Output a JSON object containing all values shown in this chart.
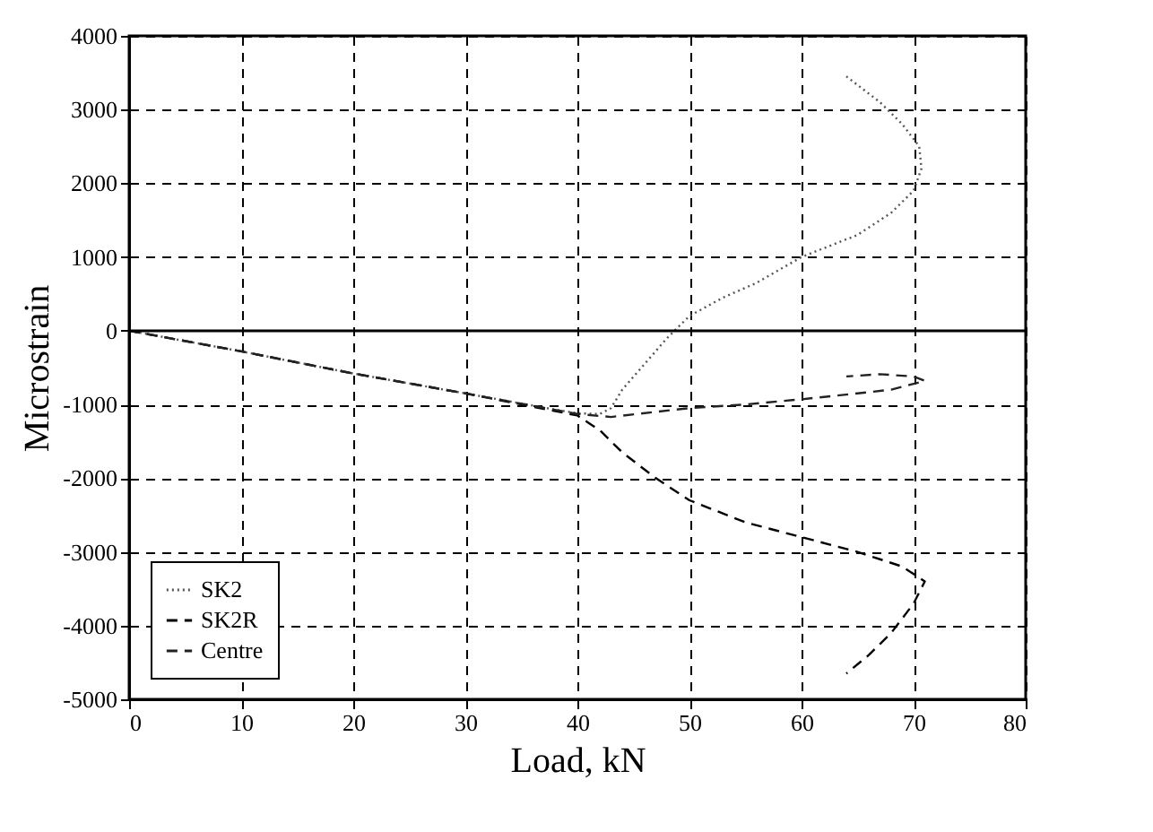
{
  "chart_data": {
    "type": "line",
    "xlabel": "Load, kN",
    "ylabel": "Microstrain",
    "xlim": [
      0,
      80
    ],
    "ylim": [
      -5000,
      4000
    ],
    "xticks": [
      0,
      10,
      20,
      30,
      40,
      50,
      60,
      70,
      80
    ],
    "yticks": [
      -5000,
      -4000,
      -3000,
      -2000,
      -1000,
      0,
      1000,
      2000,
      3000,
      4000
    ],
    "grid": true,
    "legend": "bottom left",
    "marker": "none",
    "ref_lines": [
      {
        "axis": "y",
        "value": 0,
        "color": "#000000",
        "line_style": "solid"
      }
    ],
    "series": [
      {
        "name": "SK2",
        "color": "#555555",
        "line_style": "dotted",
        "x": [
          0,
          10,
          20,
          30,
          38,
          40,
          42,
          43,
          44,
          46,
          48,
          50,
          53,
          56,
          60,
          65,
          68,
          70,
          70.7,
          70.5,
          69,
          67,
          64
        ],
        "values": [
          0,
          -280,
          -580,
          -850,
          -1070,
          -1120,
          -1130,
          -1050,
          -800,
          -450,
          -100,
          200,
          450,
          650,
          1000,
          1300,
          1600,
          1900,
          2200,
          2500,
          2800,
          3100,
          3450
        ]
      },
      {
        "name": "SK2R",
        "color": "#000000",
        "line_style": "dashed",
        "x": [
          0,
          10,
          20,
          30,
          40,
          41,
          42,
          44,
          47,
          50,
          55,
          60,
          65,
          69,
          71,
          70,
          68,
          66,
          64
        ],
        "values": [
          0,
          -280,
          -580,
          -850,
          -1150,
          -1250,
          -1350,
          -1650,
          -2000,
          -2300,
          -2600,
          -2800,
          -3000,
          -3200,
          -3400,
          -3700,
          -4100,
          -4400,
          -4650
        ]
      },
      {
        "name": "Centre",
        "color": "#222222",
        "line_style": "dashed",
        "x": [
          0,
          10,
          20,
          30,
          40,
          43,
          47,
          50,
          55,
          60,
          65,
          68,
          70,
          71,
          70,
          67,
          64
        ],
        "values": [
          0,
          -280,
          -580,
          -850,
          -1130,
          -1170,
          -1100,
          -1050,
          -1000,
          -930,
          -850,
          -800,
          -720,
          -680,
          -620,
          -590,
          -620
        ]
      }
    ]
  }
}
